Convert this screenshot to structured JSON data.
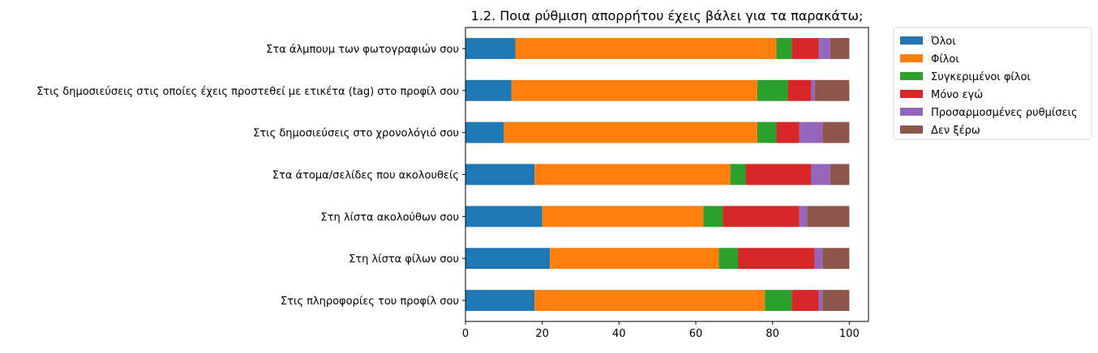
{
  "chart_data": {
    "type": "bar",
    "orientation": "horizontal",
    "stacked": true,
    "title": "1.2. Ποια ρύθμιση απορρήτου έχεις βάλει για τα παρακάτω;",
    "xlabel": "",
    "ylabel": "",
    "xlim": [
      0,
      105
    ],
    "xticks": [
      0,
      20,
      40,
      60,
      80,
      100
    ],
    "grid": false,
    "legend_position": "outside-right-top",
    "categories": [
      "Στα άλμπουμ των φωτογραφιών σου",
      "Στις δημοσιεύσεις στις οποίες έχεις προστεθεί με ετικέτα (tag) στο προφίλ σου",
      "Στις δημοσιεύσεις στο χρονολόγιό σου",
      "Στα άτομα/σελίδες που ακολουθείς",
      "Στη λίστα ακολούθων σου",
      "Στη λίστα φίλων σου",
      "Στις πληροφορίες του προφίλ σου"
    ],
    "series": [
      {
        "name": "Όλοι",
        "color": "#1f77b4",
        "values": [
          13,
          12,
          10,
          18,
          20,
          22,
          18
        ]
      },
      {
        "name": "Φίλοι",
        "color": "#ff7f0e",
        "values": [
          68,
          64,
          66,
          51,
          42,
          44,
          60
        ]
      },
      {
        "name": "Συγκεριμένοι φίλοι",
        "color": "#2ca02c",
        "values": [
          4,
          8,
          5,
          4,
          5,
          5,
          7
        ]
      },
      {
        "name": "Μόνο εγώ",
        "color": "#d62728",
        "values": [
          7,
          6,
          6,
          17,
          20,
          20,
          7
        ]
      },
      {
        "name": "Προσαρμοσμένες ρυθμίσεις",
        "color": "#9467bd",
        "values": [
          3,
          1,
          6,
          5,
          2,
          2,
          1
        ]
      },
      {
        "name": "Δεν ξέρω",
        "color": "#8c564b",
        "values": [
          5,
          9,
          7,
          5,
          11,
          7,
          7
        ]
      }
    ]
  }
}
